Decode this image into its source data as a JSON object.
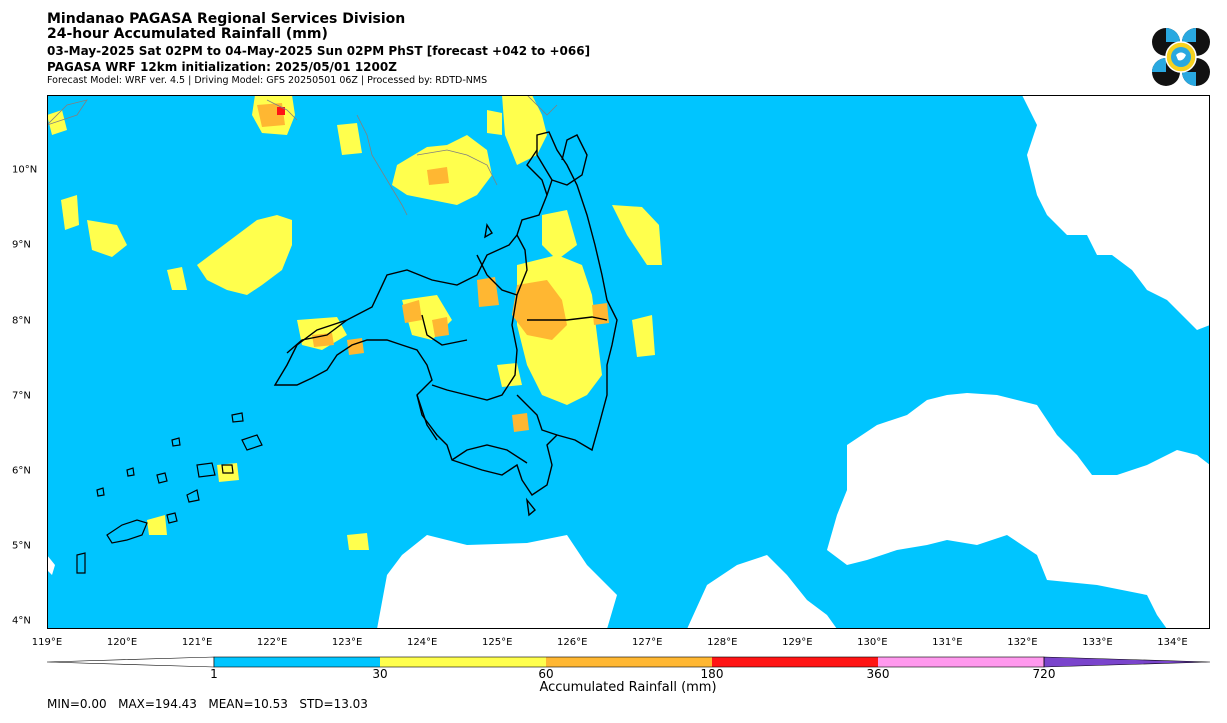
{
  "header": {
    "line1": "Mindanao PAGASA Regional Services Division",
    "line2": "24-hour Accumulated Rainfall (mm)",
    "line3": "03-May-2025 Sat 02PM to 04-May-2025 Sun 02PM PhST [forecast +042 to +066]",
    "line4": "PAGASA WRF 12km initialization: 2025/05/01 1200Z",
    "line5": "Forecast Model: WRF ver. 4.5 | Driving Model: GFS 20250501 06Z | Processed by: RDTD-NMS"
  },
  "logo_icon": "pagasa-seal-icon",
  "map": {
    "lon_range": [
      119,
      134.5
    ],
    "lat_range": [
      3.9,
      11
    ],
    "x_ticks": [
      "119°E",
      "120°E",
      "121°E",
      "122°E",
      "123°E",
      "124°E",
      "125°E",
      "126°E",
      "127°E",
      "128°E",
      "129°E",
      "130°E",
      "131°E",
      "132°E",
      "133°E",
      "134°E"
    ],
    "y_ticks": [
      "4°N",
      "5°N",
      "6°N",
      "7°N",
      "8°N",
      "9°N",
      "10°N"
    ],
    "colors": {
      "background": "#00c5ff",
      "no_rain": "#ffffff",
      "light": "#ffff4d",
      "moderate": "#ffb732",
      "heavy": "#ff1414",
      "land_outline": "#000000",
      "other_outline": "#808080"
    }
  },
  "colorbar": {
    "title": "Accumulated Rainfall (mm)",
    "labels": [
      "1",
      "30",
      "60",
      "180",
      "360",
      "720"
    ],
    "colors": [
      "#ffffff",
      "#00c5ff",
      "#ffff4d",
      "#ffb732",
      "#ff1414",
      "#ff99ee",
      "#7a44cc"
    ]
  },
  "stats": {
    "text": "MIN=0.00   MAX=194.43   MEAN=10.53   STD=13.03"
  }
}
